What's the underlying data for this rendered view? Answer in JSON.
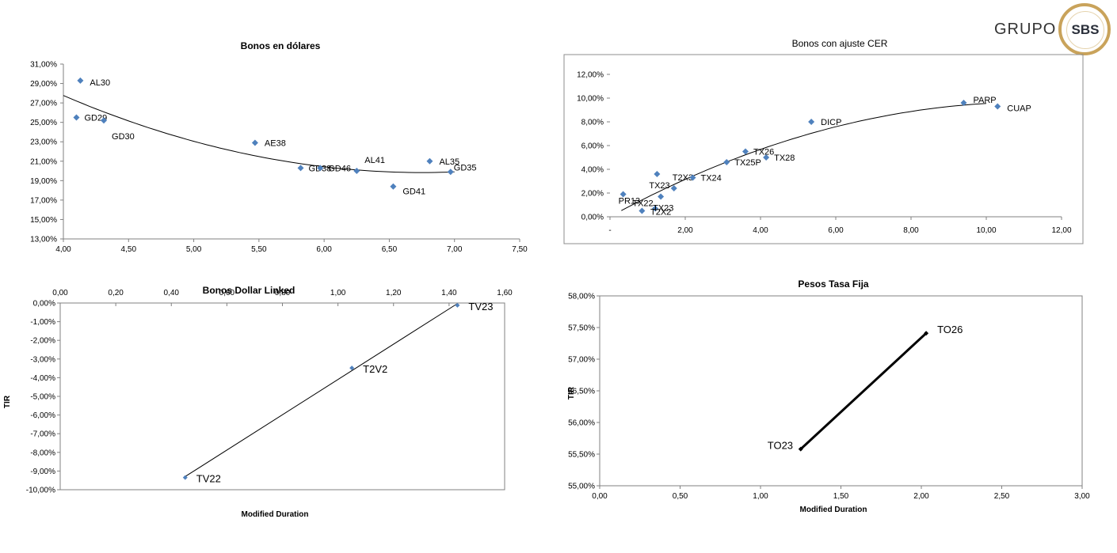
{
  "logo": {
    "brand_text": "GRUPO",
    "badge_text": "SBS",
    "accent_color": "#c9a35b"
  },
  "marker_color": "#4f81bd",
  "chart_data": [
    {
      "id": "usd",
      "type": "scatter",
      "title": "Bonos  en dólares",
      "xlabel": "",
      "ylabel": "",
      "xlim": [
        4.0,
        7.5
      ],
      "ylim": [
        0.13,
        0.31
      ],
      "x_ticks": [
        4.0,
        4.5,
        5.0,
        5.5,
        6.0,
        6.5,
        7.0,
        7.5
      ],
      "y_ticks": [
        0.13,
        0.15,
        0.17,
        0.19,
        0.21,
        0.23,
        0.25,
        0.27,
        0.29,
        0.31
      ],
      "x_tick_labels": [
        "4,00",
        "4,50",
        "5,00",
        "5,50",
        "6,00",
        "6,50",
        "7,00",
        "7,50"
      ],
      "y_tick_labels": [
        "13,00%",
        "15,00%",
        "17,00%",
        "19,00%",
        "21,00%",
        "23,00%",
        "25,00%",
        "27,00%",
        "29,00%",
        "31,00%"
      ],
      "trend": "poly2",
      "trend_range": [
        4.0,
        7.0
      ],
      "points": [
        {
          "label": "AL30",
          "x": 4.13,
          "y": 0.293
        },
        {
          "label": "GD29",
          "x": 4.1,
          "y": 0.255
        },
        {
          "label": "GD30",
          "x": 4.31,
          "y": 0.252
        },
        {
          "label": "AE38",
          "x": 5.47,
          "y": 0.229
        },
        {
          "label": "GD38",
          "x": 5.82,
          "y": 0.203
        },
        {
          "label": "GD46",
          "x": 5.97,
          "y": 0.203
        },
        {
          "label": "AL41",
          "x": 6.25,
          "y": 0.2
        },
        {
          "label": "GD41",
          "x": 6.53,
          "y": 0.184
        },
        {
          "label": "AL35",
          "x": 6.81,
          "y": 0.21
        },
        {
          "label": "GD35",
          "x": 6.97,
          "y": 0.199
        }
      ]
    },
    {
      "id": "cer",
      "type": "scatter",
      "title": "Bonos con ajuste CER",
      "xlabel": "",
      "ylabel": "",
      "xlim": [
        0,
        12
      ],
      "ylim": [
        0,
        0.12
      ],
      "x_ticks": [
        0,
        2,
        4,
        6,
        8,
        10,
        12
      ],
      "y_ticks": [
        0,
        0.02,
        0.04,
        0.06,
        0.08,
        0.1,
        0.12
      ],
      "x_tick_labels": [
        "-",
        "2,00",
        "4,00",
        "6,00",
        "8,00",
        "10,00",
        "12,00"
      ],
      "y_tick_labels": [
        "0,00%",
        "2,00%",
        "4,00%",
        "6,00%",
        "8,00%",
        "10,00%",
        "12,00%"
      ],
      "trend": "poly2",
      "trend_range": [
        0.3,
        10.0
      ],
      "points": [
        {
          "label": "PR13",
          "x": 0.35,
          "y": 0.019
        },
        {
          "label": "TX22",
          "x": 0.85,
          "y": 0.005
        },
        {
          "label": "T2X2",
          "x": 1.2,
          "y": 0.007
        },
        {
          "label": "TX23",
          "x": 1.25,
          "y": 0.036
        },
        {
          "label": "TX23",
          "x": 1.35,
          "y": 0.017
        },
        {
          "label": "T2X3",
          "x": 1.7,
          "y": 0.024
        },
        {
          "label": "TX24",
          "x": 2.2,
          "y": 0.033
        },
        {
          "label": "TX25P",
          "x": 3.1,
          "y": 0.046
        },
        {
          "label": "TX26",
          "x": 3.6,
          "y": 0.055
        },
        {
          "label": "TX28",
          "x": 4.15,
          "y": 0.05
        },
        {
          "label": "DICP",
          "x": 5.35,
          "y": 0.08
        },
        {
          "label": "PARP",
          "x": 9.4,
          "y": 0.096
        },
        {
          "label": "CUAP",
          "x": 10.3,
          "y": 0.093
        }
      ]
    },
    {
      "id": "dl",
      "type": "scatter",
      "title": "Bonos Dollar Linked",
      "xlabel": "Modified Duration",
      "ylabel": "TIR",
      "xlim": [
        0,
        1.6
      ],
      "ylim": [
        -0.1,
        0
      ],
      "x_ticks": [
        0,
        0.2,
        0.4,
        0.6,
        0.8,
        1.0,
        1.2,
        1.4,
        1.6
      ],
      "y_ticks": [
        0,
        -0.01,
        -0.02,
        -0.03,
        -0.04,
        -0.05,
        -0.06,
        -0.07,
        -0.08,
        -0.09,
        -0.1
      ],
      "x_tick_labels": [
        "0,00",
        "0,20",
        "0,40",
        "0,60",
        "0,80",
        "1,00",
        "1,20",
        "1,40",
        "1,60"
      ],
      "y_tick_labels": [
        "0,00%",
        "-1,00%",
        "-2,00%",
        "-3,00%",
        "-4,00%",
        "-5,00%",
        "-6,00%",
        "-7,00%",
        "-8,00%",
        "-9,00%",
        "-10,00%"
      ],
      "trend": "linear",
      "trend_range": [
        0.45,
        1.43
      ],
      "points": [
        {
          "label": "TV22",
          "x": 0.45,
          "y": -0.0935
        },
        {
          "label": "T2V2",
          "x": 1.05,
          "y": -0.0348
        },
        {
          "label": "TV23",
          "x": 1.43,
          "y": -0.0012
        }
      ]
    },
    {
      "id": "tf",
      "type": "line",
      "title": "Pesos Tasa Fija",
      "xlabel": "Modified Duration",
      "ylabel": "TIR",
      "xlim": [
        0,
        3
      ],
      "ylim": [
        0.55,
        0.58
      ],
      "x_ticks": [
        0,
        0.5,
        1.0,
        1.5,
        2.0,
        2.5,
        3.0
      ],
      "y_ticks": [
        0.55,
        0.555,
        0.56,
        0.565,
        0.57,
        0.575,
        0.58
      ],
      "x_tick_labels": [
        "0,00",
        "0,50",
        "1,00",
        "1,50",
        "2,00",
        "2,50",
        "3,00"
      ],
      "y_tick_labels": [
        "55,00%",
        "55,50%",
        "56,00%",
        "56,50%",
        "57,00%",
        "57,50%",
        "58,00%"
      ],
      "trend": "none",
      "points": [
        {
          "label": "TO23",
          "x": 1.25,
          "y": 0.5558
        },
        {
          "label": "TO26",
          "x": 2.03,
          "y": 0.5741
        }
      ]
    }
  ]
}
